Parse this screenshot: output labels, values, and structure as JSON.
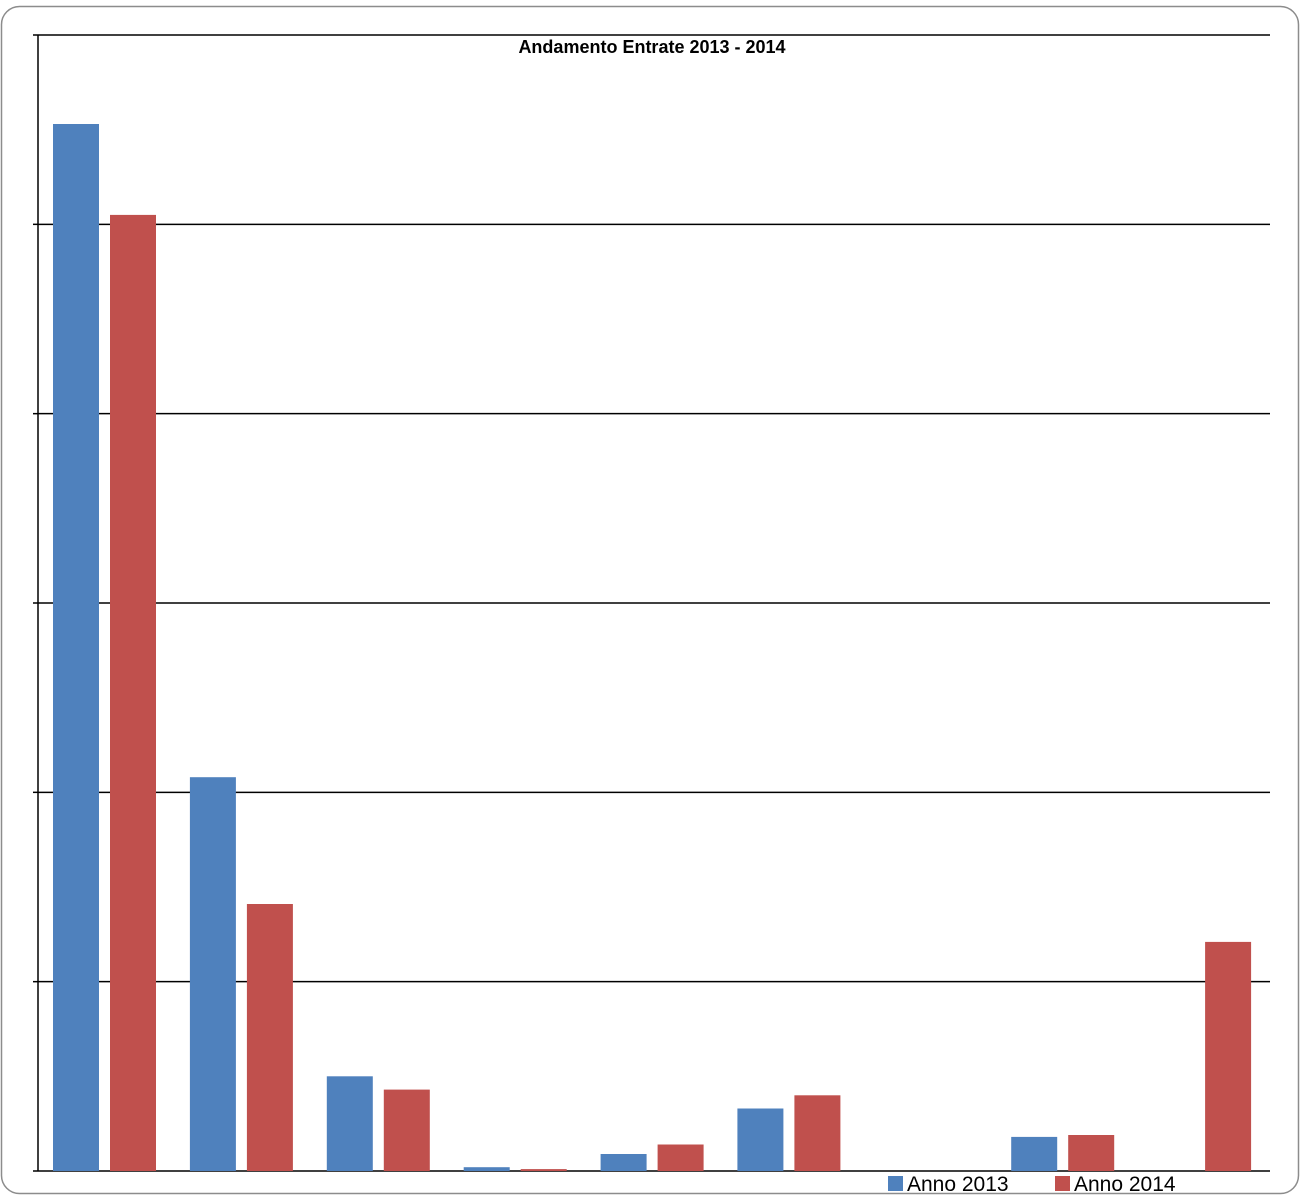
{
  "chart_data": {
    "type": "bar",
    "title": "Andamento Entrate 2013 - 2014",
    "xlabel": "",
    "ylabel": "",
    "categories": [
      "",
      "",
      "",
      "",
      "",
      "",
      "",
      "",
      ""
    ],
    "ylim": [
      0,
      6
    ],
    "grid": true,
    "legend": "bottom-right",
    "series": [
      {
        "name": "Anno 2013",
        "color": "#4F81BD",
        "values": [
          5.53,
          2.08,
          0.5,
          0.02,
          0.09,
          0.33,
          0.0,
          0.18,
          0.0
        ]
      },
      {
        "name": "Anno 2014",
        "color": "#C0504D",
        "values": [
          5.05,
          1.41,
          0.43,
          0.01,
          0.14,
          0.4,
          0.0,
          0.19,
          1.21
        ]
      }
    ]
  }
}
